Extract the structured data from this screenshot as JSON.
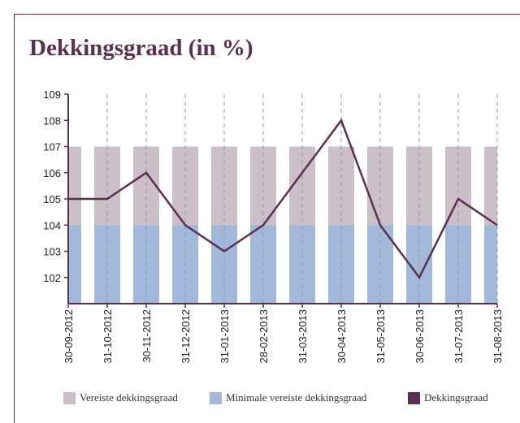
{
  "chart_data": {
    "type": "bar",
    "title": "Dekkingsgraad (in %)",
    "categories": [
      "30-09-2012",
      "31-10-2012",
      "30-11-2012",
      "31-12-2012",
      "31-01-2013",
      "28-02-2013",
      "31-03-2013",
      "30-04-2013",
      "31-05-2013",
      "30-06-2013",
      "31-07-2013",
      "31-08-2013"
    ],
    "series": [
      {
        "name": "Vereiste dekkingsgraad",
        "type": "bar",
        "color": "#cdbfc8",
        "values": [
          107,
          107,
          107,
          107,
          107,
          107,
          107,
          107,
          107,
          107,
          107,
          107
        ]
      },
      {
        "name": "Minimale vereiste dekkingsgraad",
        "type": "bar",
        "color": "#a3b9dc",
        "values": [
          104,
          104,
          104,
          104,
          104,
          104,
          104,
          104,
          104,
          104,
          104,
          104
        ]
      },
      {
        "name": "Dekkingsgraad",
        "type": "line",
        "color": "#5a3050",
        "values": [
          105,
          105,
          106,
          104,
          103,
          104,
          106,
          108,
          104,
          102,
          105,
          104
        ]
      }
    ],
    "ylim": [
      101,
      109
    ],
    "yticks": [
      102,
      103,
      104,
      105,
      106,
      107,
      108,
      109
    ],
    "grid": true,
    "legend": "bottom"
  }
}
